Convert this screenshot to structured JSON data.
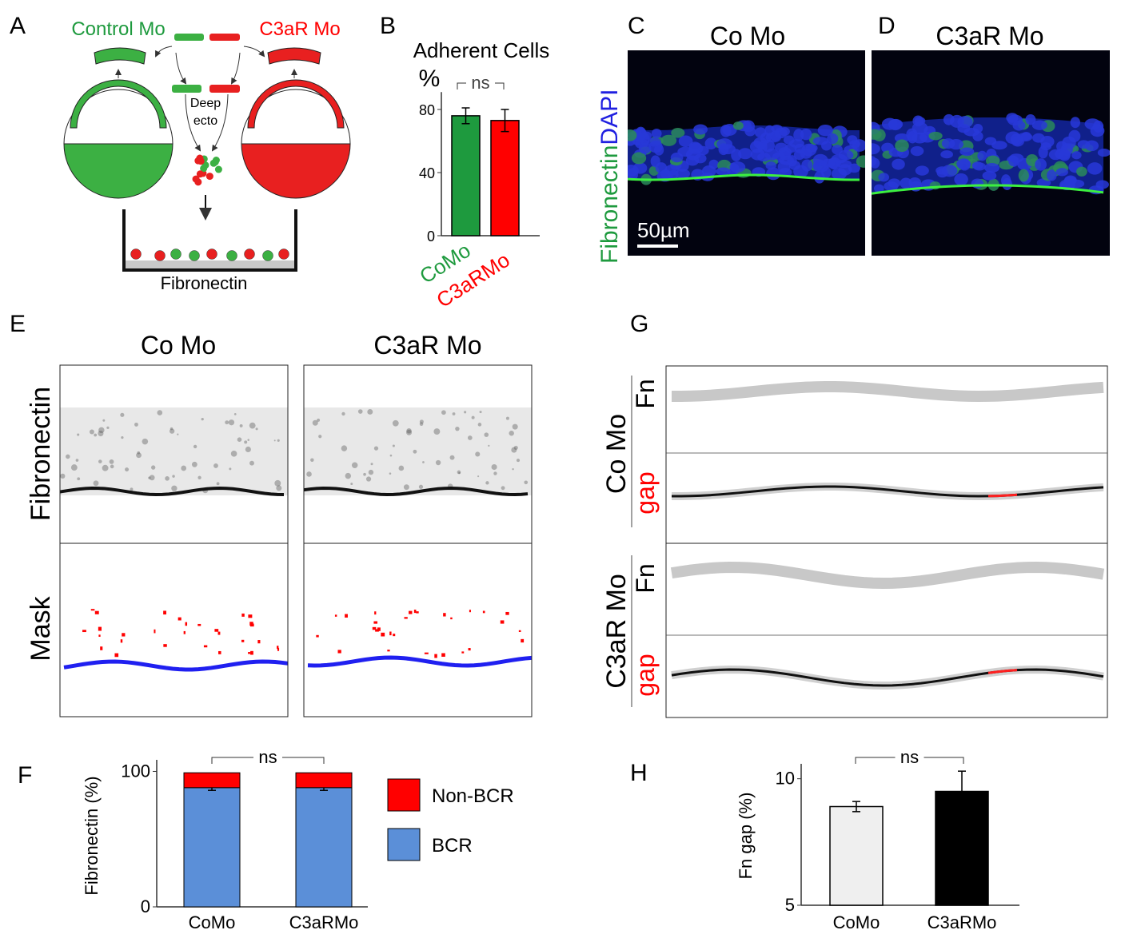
{
  "panel_letters": [
    "A",
    "B",
    "C",
    "D",
    "E",
    "F",
    "G",
    "H"
  ],
  "diagram_a": {
    "left_label": "Control Mo",
    "right_label": "C3aR Mo",
    "center_label": [
      "Deep",
      "ecto"
    ],
    "bottom_label": "Fibronectin"
  },
  "micrographs_cd": {
    "titles": [
      "Co Mo",
      "C3aR Mo"
    ],
    "stain": [
      "Fibronectin",
      "DAPI"
    ],
    "scale_bar": "50µm"
  },
  "panel_e": {
    "columns": [
      "Co Mo",
      "C3aR Mo"
    ],
    "rows": [
      "Fibronectin",
      "Mask"
    ]
  },
  "panel_g": {
    "rows": [
      "Co Mo",
      "C3aR Mo"
    ],
    "tracks": [
      "Fn",
      "gap"
    ]
  },
  "chart_data": [
    {
      "type": "bar",
      "title": "Adherent Cells",
      "ylabel": "%",
      "categories": [
        "CoMo",
        "C3aRMo"
      ],
      "values": [
        76,
        73
      ],
      "errors": [
        5,
        7
      ],
      "colors": [
        "#1e9a3e",
        "#ff0000"
      ],
      "ylim": [
        0,
        88
      ],
      "yticks": [
        0,
        40,
        80
      ],
      "annotation": "ns"
    },
    {
      "type": "stacked_bar",
      "ylabel": "Fibronectin (%)",
      "categories": [
        "CoMo",
        "C3aRMo"
      ],
      "series": [
        {
          "name": "BCR",
          "color": "#5b8fd8",
          "values": [
            88,
            88
          ],
          "errors": [
            2,
            2
          ]
        },
        {
          "name": "Non-BCR",
          "color": "#ff0000",
          "values": [
            11,
            11
          ]
        }
      ],
      "ylim": [
        0,
        105
      ],
      "yticks": [
        0,
        100
      ],
      "annotation": "ns"
    },
    {
      "type": "bar",
      "ylabel": "Fn gap (%)",
      "categories": [
        "CoMo",
        "C3aRMo"
      ],
      "values": [
        8.9,
        9.5
      ],
      "errors": [
        0.2,
        0.8
      ],
      "colors": [
        "#efefef",
        "#000000"
      ],
      "ylim": [
        5,
        10.4
      ],
      "yticks": [
        5,
        10
      ],
      "annotation": "ns"
    }
  ]
}
